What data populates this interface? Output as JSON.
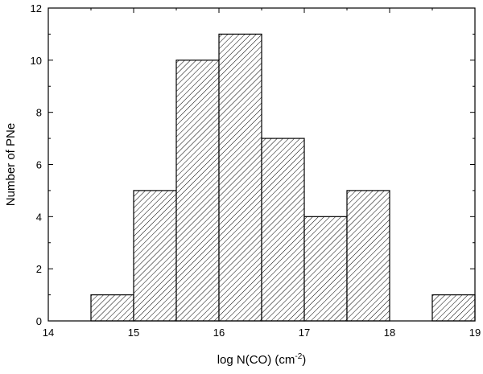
{
  "chart_data": {
    "type": "bar",
    "title": "",
    "xlabel": "log N(CO) (cm",
    "xlabel_sup": "-2",
    "xlabel_close": ")",
    "ylabel": "Number of PNe",
    "xlim": [
      14,
      19
    ],
    "ylim": [
      0,
      12
    ],
    "xticks": [
      "14",
      "15",
      "16",
      "17",
      "18",
      "19"
    ],
    "yticks": [
      "0",
      "2",
      "4",
      "6",
      "8",
      "10",
      "12"
    ],
    "bin_width": 0.5,
    "bins": [
      {
        "x0": 14.5,
        "x1": 15.0,
        "count": 1
      },
      {
        "x0": 15.0,
        "x1": 15.5,
        "count": 5
      },
      {
        "x0": 15.5,
        "x1": 16.0,
        "count": 10
      },
      {
        "x0": 16.0,
        "x1": 16.5,
        "count": 11
      },
      {
        "x0": 16.5,
        "x1": 17.0,
        "count": 7
      },
      {
        "x0": 17.0,
        "x1": 17.5,
        "count": 4
      },
      {
        "x0": 17.5,
        "x1": 18.0,
        "count": 5
      },
      {
        "x0": 18.5,
        "x1": 19.0,
        "count": 1
      }
    ],
    "fill": "diagonal-hatch",
    "grid": false,
    "legend": "none"
  }
}
